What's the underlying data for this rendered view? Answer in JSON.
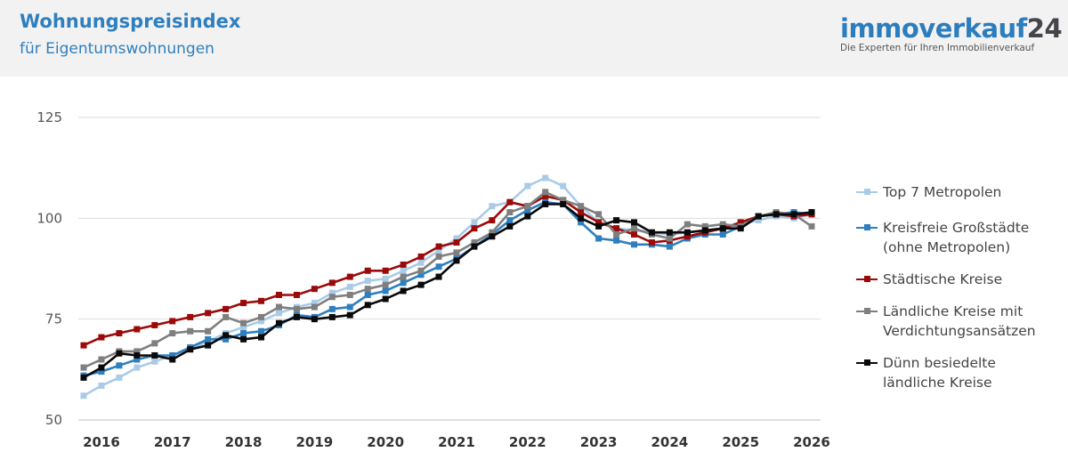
{
  "header": {
    "title": "Wohnungspreisindex",
    "subtitle": "für Eigentumswohnungen"
  },
  "logo": {
    "name_main": "immoverkauf",
    "name_num": "24",
    "tagline": "Die Experten für Ihren Immobilienverkauf"
  },
  "chart_data": {
    "type": "line",
    "title": "",
    "xlabel": "",
    "ylabel": "",
    "x_range": [
      2015.75,
      2026.0
    ],
    "ylim": [
      50,
      125
    ],
    "y_ticks": [
      50,
      75,
      100,
      125
    ],
    "x_ticks": [
      "2016",
      "2017",
      "2018",
      "2019",
      "2020",
      "2021",
      "2022",
      "2023",
      "2024",
      "2025",
      "2026"
    ],
    "grid": true,
    "legend_placement": "right",
    "x": [
      2015.75,
      2016.0,
      2016.25,
      2016.5,
      2016.75,
      2017.0,
      2017.25,
      2017.5,
      2017.75,
      2018.0,
      2018.25,
      2018.5,
      2018.75,
      2019.0,
      2019.25,
      2019.5,
      2019.75,
      2020.0,
      2020.25,
      2020.5,
      2020.75,
      2021.0,
      2021.25,
      2021.5,
      2021.75,
      2022.0,
      2022.25,
      2022.5,
      2022.75,
      2023.0,
      2023.25,
      2023.5,
      2023.75,
      2024.0,
      2024.25,
      2024.5,
      2024.75,
      2025.0,
      2025.25,
      2025.5,
      2025.75,
      2026.0
    ],
    "series": [
      {
        "name": "Top 7 Metropolen",
        "color": "#a9cbe8",
        "values": [
          56.0,
          58.5,
          60.5,
          63.0,
          64.5,
          66.0,
          67.5,
          69.5,
          71.5,
          73.0,
          74.5,
          76.5,
          78.0,
          79.0,
          81.5,
          83.0,
          84.5,
          85.0,
          87.0,
          89.0,
          92.0,
          95.0,
          99.0,
          103.0,
          104.0,
          108.0,
          110.0,
          108.0,
          103.0,
          99.0,
          97.5,
          97.0,
          96.5,
          96.0,
          96.5,
          97.0,
          97.5,
          98.5,
          99.5,
          100.5,
          100.0,
          101.0
        ]
      },
      {
        "name": "Kreisfreie Großstädte (ohne Metropolen)",
        "color": "#2e7fbf",
        "values": [
          61.0,
          62.0,
          63.5,
          65.0,
          66.0,
          66.0,
          68.0,
          70.0,
          70.0,
          71.5,
          72.0,
          73.5,
          76.0,
          75.5,
          77.5,
          78.0,
          81.0,
          82.0,
          84.0,
          86.0,
          88.0,
          90.0,
          93.0,
          96.0,
          99.5,
          102.0,
          104.0,
          103.5,
          99.0,
          95.0,
          94.5,
          93.5,
          93.5,
          93.0,
          95.0,
          96.0,
          96.0,
          98.0,
          100.5,
          101.0,
          101.5,
          101.0
        ]
      },
      {
        "name": "Städtische Kreise",
        "color": "#9b0a0a",
        "values": [
          68.5,
          70.5,
          71.5,
          72.5,
          73.5,
          74.5,
          75.5,
          76.5,
          77.5,
          79.0,
          79.5,
          81.0,
          81.0,
          82.5,
          84.0,
          85.5,
          87.0,
          87.0,
          88.5,
          90.5,
          93.0,
          94.0,
          97.5,
          99.5,
          104.0,
          103.0,
          105.5,
          104.5,
          101.5,
          99.0,
          97.5,
          96.0,
          94.0,
          94.5,
          95.5,
          96.5,
          97.5,
          99.0,
          100.5,
          101.0,
          100.5,
          101.0
        ]
      },
      {
        "name": "Ländliche Kreise mit Verdichtungsansätzen",
        "color": "#7f7f7f",
        "values": [
          63.0,
          65.0,
          67.0,
          67.0,
          69.0,
          71.5,
          72.0,
          72.0,
          75.5,
          74.0,
          75.5,
          78.0,
          77.5,
          78.0,
          80.5,
          81.0,
          82.5,
          83.5,
          85.5,
          87.0,
          90.5,
          91.5,
          94.0,
          96.5,
          101.5,
          103.0,
          106.5,
          104.5,
          103.0,
          101.0,
          96.0,
          97.5,
          96.0,
          95.0,
          98.5,
          98.0,
          98.5,
          98.0,
          100.5,
          101.5,
          101.0,
          98.0
        ]
      },
      {
        "name": "Dünn besiedelte ländliche Kreise",
        "color": "#0a0a0a",
        "values": [
          60.5,
          63.0,
          66.5,
          66.0,
          66.0,
          65.0,
          67.5,
          68.5,
          71.0,
          70.0,
          70.5,
          74.0,
          75.5,
          75.0,
          75.5,
          76.0,
          78.5,
          80.0,
          82.0,
          83.5,
          85.5,
          89.5,
          93.0,
          95.5,
          98.0,
          100.5,
          103.5,
          103.5,
          100.0,
          98.0,
          99.5,
          99.0,
          96.5,
          96.5,
          96.5,
          97.0,
          97.5,
          97.5,
          100.5,
          101.0,
          101.0,
          101.5
        ]
      }
    ]
  }
}
